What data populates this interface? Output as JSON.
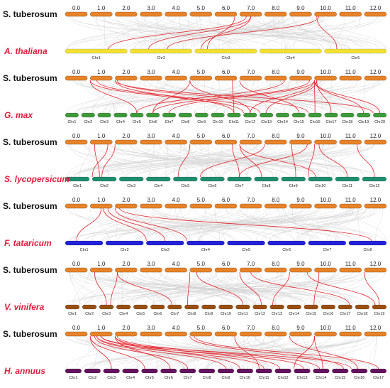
{
  "reference": {
    "label": "S. tuberosum",
    "color": "#E8832A",
    "chromosomes": [
      "0.0",
      "1.0",
      "2.0",
      "3.0",
      "4.0",
      "5.0",
      "6.0",
      "7.0",
      "8.0",
      "9.0",
      "10.0",
      "11.0",
      "12.0"
    ]
  },
  "colors": {
    "species_label": "#E3193B",
    "collinear": "#E8242C",
    "background": "#D5D5D5"
  },
  "panels": [
    {
      "species": "A. thaliana",
      "color": "#F2E134",
      "chromosomes": [
        "Chr1",
        "Chr2",
        "Chr3",
        "Chr4",
        "Chr5"
      ],
      "links": [
        [
          7.3,
          0.7
        ],
        [
          7.5,
          1.3
        ],
        [
          7.5,
          2.1
        ],
        [
          10.2,
          1.6
        ],
        [
          10.1,
          4.2
        ],
        [
          6.9,
          2.2
        ]
      ]
    },
    {
      "species": "G. max",
      "color": "#3E9A3A",
      "chromosomes": [
        "Chr1",
        "Chr2",
        "Chr3",
        "Chr4",
        "Chr5",
        "Chr6",
        "Chr7",
        "Chr8",
        "Chr9",
        "Chr10",
        "Chr11",
        "Chr12",
        "Chr13",
        "Chr14",
        "Chr15",
        "Chr16",
        "Chr17",
        "Chr18",
        "Chr19",
        "Chr20"
      ],
      "links": [
        [
          1.0,
          4.5
        ],
        [
          1.0,
          11.0
        ],
        [
          1.3,
          12.0
        ],
        [
          2.0,
          10.5
        ],
        [
          2.1,
          15.0
        ],
        [
          2.0,
          19.0
        ],
        [
          5.0,
          5.5
        ],
        [
          5.0,
          11.5
        ],
        [
          6.8,
          10.5
        ],
        [
          7.0,
          14.5
        ],
        [
          8.9,
          4.5
        ],
        [
          9.9,
          5.5
        ],
        [
          10.0,
          6.5
        ],
        [
          10.0,
          11.5
        ],
        [
          10.1,
          12.5
        ],
        [
          10.1,
          16.5
        ],
        [
          10.0,
          18.5
        ],
        [
          10.0,
          19.5
        ],
        [
          10.0,
          15.5
        ]
      ]
    },
    {
      "species": "S. lycopersicum",
      "color": "#1F8E6E",
      "chromosomes": [
        "Chr1",
        "Chr2",
        "Chr3",
        "Chr4",
        "Chr5",
        "Chr6",
        "Chr7",
        "Chr8",
        "Chr9",
        "Chr10",
        "Chr11",
        "Chr12"
      ],
      "links": [
        [
          1.2,
          1.3
        ],
        [
          1.8,
          1.0
        ],
        [
          2.0,
          1.4
        ],
        [
          5.0,
          4.2
        ],
        [
          6.8,
          6.5
        ],
        [
          7.0,
          9.3
        ],
        [
          7.0,
          7.3
        ],
        [
          8.0,
          5.0
        ],
        [
          9.1,
          8.6
        ],
        [
          9.8,
          6.5
        ],
        [
          10.0,
          9.0
        ],
        [
          10.2,
          10.5
        ],
        [
          11.8,
          11.5
        ]
      ]
    },
    {
      "species": "F. tataricum",
      "color": "#2222D8",
      "chromosomes": [
        "Chr1",
        "Chr2",
        "Chr3",
        "Chr4",
        "Chr5",
        "Chr6",
        "Chr7",
        "Chr8"
      ],
      "links": [
        [
          1.5,
          0.3
        ],
        [
          1.6,
          2.0
        ],
        [
          1.8,
          2.5
        ],
        [
          2.0,
          3.0
        ],
        [
          2.2,
          7.6
        ]
      ]
    },
    {
      "species": "V. vinifera",
      "color": "#9A4F12",
      "chromosomes": [
        "Chr1",
        "Chr2",
        "Chr3",
        "Chr4",
        "Chr5",
        "Chr6",
        "Chr7",
        "Chr8",
        "Chr9",
        "Chr10",
        "Chr11",
        "Chr12",
        "Chr13",
        "Chr14",
        "Chr15",
        "Chr16",
        "Chr17",
        "Chr18",
        "Chr19"
      ],
      "links": [
        [
          1.2,
          2.5
        ],
        [
          2.1,
          2.8
        ],
        [
          2.1,
          6.3
        ],
        [
          5.0,
          7.2
        ],
        [
          5.3,
          10.5
        ],
        [
          7.0,
          11.6
        ],
        [
          7.5,
          16.8
        ],
        [
          9.0,
          12.2
        ],
        [
          9.8,
          18.2
        ],
        [
          10.2,
          14.7
        ],
        [
          12.0,
          18.5
        ]
      ]
    },
    {
      "species": "H. annuus",
      "color": "#64135E",
      "chromosomes": [
        "Chr1",
        "Chr2",
        "Chr3",
        "Chr4",
        "Chr5",
        "Chr6",
        "Chr7",
        "Chr8",
        "Chr9",
        "Chr10",
        "Chr11",
        "Chr12",
        "Chr13",
        "Chr14",
        "Chr15",
        "Chr16",
        "Chr17"
      ],
      "links": [
        [
          1.0,
          2.5
        ],
        [
          1.0,
          4.2
        ],
        [
          1.2,
          6.5
        ],
        [
          1.3,
          8.5
        ],
        [
          1.3,
          10.5
        ],
        [
          1.5,
          12.6
        ],
        [
          1.5,
          15.0
        ],
        [
          2.0,
          5.6
        ],
        [
          2.0,
          9.2
        ],
        [
          2.0,
          11.3
        ],
        [
          2.1,
          13.4
        ],
        [
          5.0,
          14.7
        ],
        [
          5.2,
          16.5
        ],
        [
          6.9,
          10.2
        ],
        [
          9.0,
          15.4
        ],
        [
          10.0,
          13.6
        ],
        [
          10.0,
          12.0
        ]
      ]
    }
  ]
}
